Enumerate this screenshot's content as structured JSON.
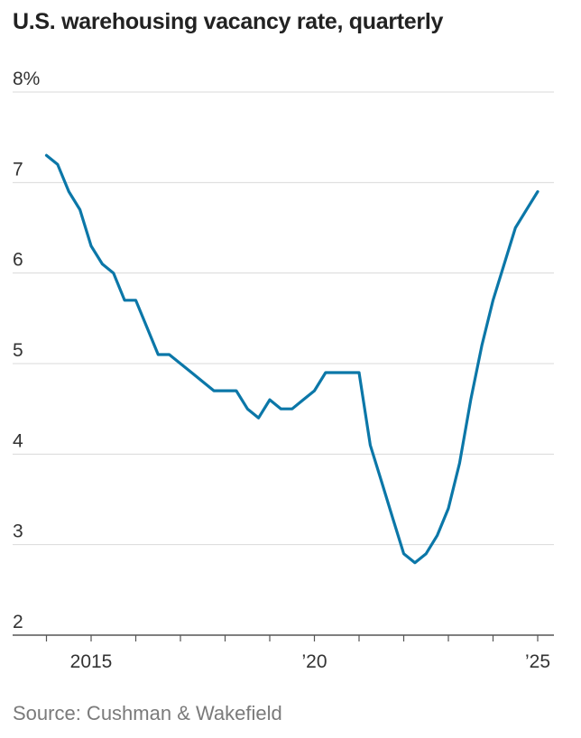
{
  "title": "U.S. warehousing vacancy rate, quarterly",
  "source": "Source: Cushman & Wakefield",
  "colors": {
    "line": "#0b77a8",
    "grid": "#d9d9d9",
    "axis": "#555555"
  },
  "chart_data": {
    "type": "line",
    "title": "U.S. warehousing vacancy rate, quarterly",
    "xlabel": "",
    "ylabel": "",
    "ylim": [
      2,
      8
    ],
    "xlim": [
      "2013-Q3",
      "2025-Q2"
    ],
    "grid": true,
    "y_ticks": [
      {
        "value": 8,
        "label": "8%"
      },
      {
        "value": 7,
        "label": "7"
      },
      {
        "value": 6,
        "label": "6"
      },
      {
        "value": 5,
        "label": "5"
      },
      {
        "value": 4,
        "label": "4"
      },
      {
        "value": 3,
        "label": "3"
      },
      {
        "value": 2,
        "label": "2"
      }
    ],
    "x_ticks": [
      {
        "value": "2015-Q1",
        "label": "2015"
      },
      {
        "value": "2020-Q1",
        "label": "’20"
      },
      {
        "value": "2025-Q1",
        "label": "’25"
      }
    ],
    "x_minor_ticks": [
      "2014-Q1",
      "2015-Q1",
      "2016-Q1",
      "2017-Q1",
      "2018-Q1",
      "2019-Q1",
      "2020-Q1",
      "2021-Q1",
      "2022-Q1",
      "2023-Q1",
      "2024-Q1",
      "2025-Q1"
    ],
    "series": [
      {
        "x": [
          "2014-Q1",
          "2014-Q2",
          "2014-Q3",
          "2014-Q4",
          "2015-Q1",
          "2015-Q2",
          "2015-Q3",
          "2015-Q4",
          "2016-Q1",
          "2016-Q2",
          "2016-Q3",
          "2016-Q4",
          "2017-Q1",
          "2017-Q2",
          "2017-Q3",
          "2017-Q4",
          "2018-Q1",
          "2018-Q2",
          "2018-Q3",
          "2018-Q4",
          "2019-Q1",
          "2019-Q2",
          "2019-Q3",
          "2019-Q4",
          "2020-Q1",
          "2020-Q2",
          "2020-Q3",
          "2020-Q4",
          "2021-Q1",
          "2021-Q2",
          "2021-Q3",
          "2021-Q4",
          "2022-Q1",
          "2022-Q2",
          "2022-Q3",
          "2022-Q4",
          "2023-Q1",
          "2023-Q2",
          "2023-Q3",
          "2023-Q4",
          "2024-Q1",
          "2024-Q2",
          "2024-Q3",
          "2024-Q4",
          "2025-Q1"
        ],
        "values": [
          7.3,
          7.2,
          6.9,
          6.7,
          6.3,
          6.1,
          6.0,
          5.7,
          5.7,
          5.4,
          5.1,
          5.1,
          5.0,
          4.9,
          4.8,
          4.7,
          4.7,
          4.7,
          4.5,
          4.4,
          4.6,
          4.5,
          4.5,
          4.6,
          4.7,
          4.9,
          4.9,
          4.9,
          4.9,
          4.1,
          3.7,
          3.3,
          2.9,
          2.8,
          2.9,
          3.1,
          3.4,
          3.9,
          4.6,
          5.2,
          5.7,
          6.1,
          6.5,
          6.7,
          6.9
        ]
      }
    ]
  }
}
